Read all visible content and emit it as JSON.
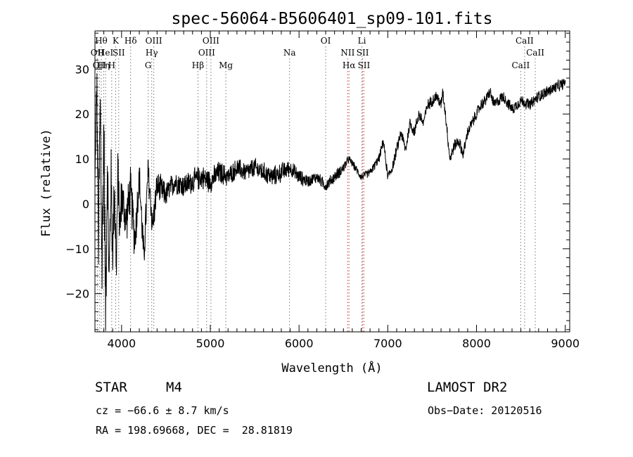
{
  "chart_data": {
    "type": "line",
    "title": "spec-56064-B5606401_sp09-101.fits",
    "xlabel": "Wavelength (Å)",
    "ylabel": "Flux (relative)",
    "xlim": [
      3700,
      9050
    ],
    "ylim": [
      -28.5,
      38.5
    ],
    "x_ticks": [
      4000,
      5000,
      6000,
      7000,
      8000,
      9000
    ],
    "y_ticks": [
      -20,
      -10,
      0,
      10,
      20,
      30
    ],
    "grid": false,
    "series": [
      {
        "name": "flux",
        "x": [
          3700,
          3720,
          3740,
          3760,
          3780,
          3800,
          3820,
          3840,
          3860,
          3880,
          3900,
          3920,
          3940,
          3960,
          3980,
          4000,
          4050,
          4100,
          4150,
          4200,
          4250,
          4300,
          4350,
          4400,
          4500,
          4600,
          4700,
          4800,
          4900,
          5000,
          5100,
          5200,
          5300,
          5400,
          5500,
          5600,
          5700,
          5800,
          5900,
          6000,
          6100,
          6200,
          6300,
          6400,
          6500,
          6560,
          6600,
          6700,
          6800,
          6900,
          6950,
          7000,
          7050,
          7100,
          7150,
          7200,
          7250,
          7300,
          7350,
          7400,
          7450,
          7500,
          7550,
          7600,
          7620,
          7650,
          7700,
          7750,
          7800,
          7850,
          7900,
          7950,
          8000,
          8050,
          8100,
          8150,
          8200,
          8300,
          8400,
          8500,
          8600,
          8700,
          8800,
          8900,
          9000
        ],
        "y": [
          5,
          27,
          -8,
          22,
          -15,
          18,
          -24,
          10,
          -18,
          6,
          -10,
          4,
          -14,
          8,
          -6,
          2,
          -4,
          3,
          -8,
          6,
          -12,
          7,
          -5,
          4,
          2,
          5,
          4,
          5,
          6,
          5,
          7,
          6,
          8,
          7,
          8,
          7,
          6,
          7,
          8,
          6,
          5,
          6,
          4,
          6,
          8,
          10,
          9,
          6,
          7,
          10,
          14,
          6,
          8,
          12,
          16,
          12,
          18,
          16,
          20,
          18,
          22,
          23,
          24,
          22,
          25,
          20,
          10,
          13,
          14,
          11,
          16,
          18,
          20,
          22,
          23,
          25,
          22,
          24,
          21,
          23,
          22,
          24,
          25,
          26,
          27
        ],
        "amplitude": [
          0,
          9,
          11,
          12,
          13,
          13,
          12,
          11,
          10,
          10,
          9,
          8,
          8,
          7,
          7,
          6,
          6,
          6,
          6,
          5,
          5,
          5,
          4,
          4,
          3,
          3,
          3,
          3,
          3,
          3,
          3,
          2.5,
          2.5,
          2.5,
          2.5,
          2.5,
          2.5,
          2.5,
          2,
          2,
          1.5,
          1.5,
          1.5,
          1.5,
          1.5,
          1,
          1,
          1,
          1,
          1.2,
          1.2,
          1.2,
          1.2,
          1.5,
          1.5,
          1.5,
          1.5,
          1.5,
          1.5,
          1.5,
          1.5,
          1.5,
          1.5,
          1.5,
          1.5,
          1.5,
          1.5,
          1.5,
          1.5,
          1.5,
          1.5,
          1.5,
          1.5,
          1.5,
          1.5,
          1.5,
          1.5,
          1.5,
          1.5,
          1.5,
          1.5,
          1.5,
          1.5,
          1.5,
          1.5
        ]
      }
    ],
    "lines": [
      {
        "wl": 3727,
        "label": "OII",
        "row": 1,
        "color": "#777777"
      },
      {
        "wl": 3750,
        "label": "OII",
        "row": 2,
        "color": "#777777"
      },
      {
        "wl": 3771,
        "label": "Hθ",
        "row": 0,
        "color": "#777777"
      },
      {
        "wl": 3798,
        "label": "Hη",
        "row": 2,
        "color": "#777777"
      },
      {
        "wl": 3820,
        "label": "HeI",
        "row": 1,
        "color": "#777777"
      },
      {
        "wl": 3889,
        "label": "H",
        "row": 2,
        "color": "#777777"
      },
      {
        "wl": 3934,
        "label": "K",
        "row": 0,
        "color": "#777777"
      },
      {
        "wl": 3968,
        "label": "SII",
        "row": 1,
        "color": "#777777"
      },
      {
        "wl": 4102,
        "label": "Hδ",
        "row": 0,
        "color": "#777777"
      },
      {
        "wl": 4300,
        "label": "G",
        "row": 2,
        "color": "#777777"
      },
      {
        "wl": 4340,
        "label": "Hγ",
        "row": 1,
        "color": "#777777"
      },
      {
        "wl": 4363,
        "label": "OIII",
        "row": 0,
        "color": "#777777"
      },
      {
        "wl": 4861,
        "label": "Hβ",
        "row": 2,
        "color": "#777777"
      },
      {
        "wl": 4959,
        "label": "OIII",
        "row": 1,
        "color": "#777777"
      },
      {
        "wl": 5007,
        "label": "OIII",
        "row": 0,
        "color": "#777777"
      },
      {
        "wl": 5175,
        "label": "Mg",
        "row": 2,
        "color": "#777777"
      },
      {
        "wl": 5893,
        "label": "Na",
        "row": 1,
        "color": "#777777"
      },
      {
        "wl": 6300,
        "label": "OI",
        "row": 0,
        "color": "#777777"
      },
      {
        "wl": 6548,
        "label": "NII",
        "row": 1,
        "color": "#cc4444"
      },
      {
        "wl": 6563,
        "label": "Hα",
        "row": 2,
        "color": "#cc4444"
      },
      {
        "wl": 6708,
        "label": "Li",
        "row": 0,
        "color": "#777777"
      },
      {
        "wl": 6717,
        "label": "SII",
        "row": 1,
        "color": "#cc4444"
      },
      {
        "wl": 6731,
        "label": "SII",
        "row": 2,
        "color": "#cc4444"
      },
      {
        "wl": 8498,
        "label": "CaII",
        "row": 2,
        "color": "#777777"
      },
      {
        "wl": 8542,
        "label": "CaII",
        "row": 0,
        "color": "#777777"
      },
      {
        "wl": 8662,
        "label": "CaII",
        "row": 1,
        "color": "#777777"
      }
    ]
  },
  "info": {
    "object_class": "STAR",
    "subclass": "M4",
    "survey": "LAMOST DR2",
    "redshift": "cz = −66.6 ± 8.7 km/s",
    "obs_date": "Obs−Date: 20120516",
    "coords": "RA = 198.69668, DEC =  28.81819"
  }
}
